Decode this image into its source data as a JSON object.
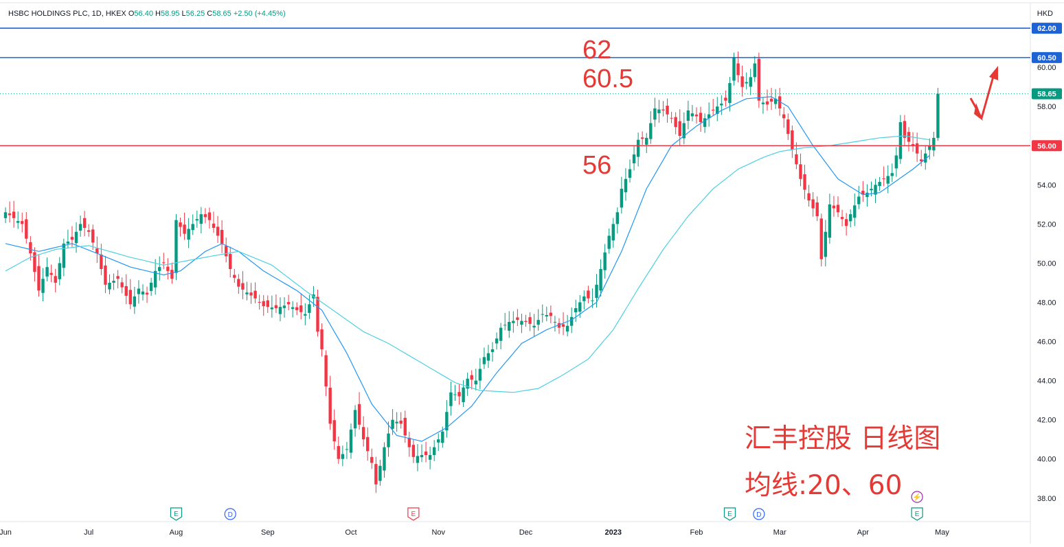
{
  "header": {
    "symbol": "HSBC HOLDINGS PLC, 1D, HKEX",
    "open_label": "O",
    "open": "56.40",
    "high_label": "H",
    "high": "58.95",
    "low_label": "L",
    "low": "56.25",
    "close_label": "C",
    "close": "58.65",
    "change": "+2.50 (+4.45%)",
    "currency": "HKD"
  },
  "annotations": {
    "level_62": "62",
    "level_605": "60.5",
    "level_56": "56",
    "caption_line1": "汇丰控股 日线图",
    "caption_line2": "均线:20、60"
  },
  "colors": {
    "up": "#089981",
    "down": "#f23645",
    "ma20": "#2196f3",
    "ma60": "#4dd0e1",
    "hline_blue": "#1e63d6",
    "hline_red": "#f23645",
    "annotation": "#e53935"
  },
  "chart_data": {
    "type": "candlestick",
    "ylim": [
      36.8,
      63.3
    ],
    "y_ticks": [
      38,
      40,
      42,
      44,
      46,
      48,
      50,
      52,
      54,
      56,
      58,
      60
    ],
    "x_tick_labels": [
      "Jun",
      "Jul",
      "Aug",
      "Sep",
      "Oct",
      "Nov",
      "Dec",
      "2023",
      "Feb",
      "Mar",
      "Apr",
      "May"
    ],
    "x_tick_bars": [
      0,
      20,
      41,
      63,
      83,
      104,
      125,
      146,
      166,
      186,
      206,
      225
    ],
    "horizontal_lines": [
      {
        "price": 62.0,
        "color": "blue",
        "label": "62.00"
      },
      {
        "price": 60.5,
        "color": "blue",
        "label": "60.50"
      },
      {
        "price": 56.0,
        "color": "red",
        "label": "56.00"
      }
    ],
    "last_price": {
      "price": 58.65,
      "label": "58.65"
    },
    "events": [
      {
        "bar": 41,
        "type": "E"
      },
      {
        "bar": 54,
        "type": "D"
      },
      {
        "bar": 98,
        "type": "E"
      },
      {
        "bar": 174,
        "type": "E"
      },
      {
        "bar": 181,
        "type": "D"
      },
      {
        "bar": 219,
        "type": "E"
      },
      {
        "bar": 219,
        "type": "split"
      }
    ],
    "series": [
      {
        "name": "Close",
        "keypoints": [
          [
            0,
            52.6
          ],
          [
            4,
            52.0
          ],
          [
            6,
            50.5
          ],
          [
            8,
            48.6
          ],
          [
            10,
            49.8
          ],
          [
            12,
            49.0
          ],
          [
            14,
            51.0
          ],
          [
            16,
            51.2
          ],
          [
            18,
            52.0
          ],
          [
            20,
            51.6
          ],
          [
            22,
            50.5
          ],
          [
            24,
            48.9
          ],
          [
            27,
            49.2
          ],
          [
            30,
            47.9
          ],
          [
            32,
            48.7
          ],
          [
            34,
            48.4
          ],
          [
            36,
            49.6
          ],
          [
            38,
            50.0
          ],
          [
            40,
            49.2
          ],
          [
            41,
            52.2
          ],
          [
            43,
            51.5
          ],
          [
            45,
            52.0
          ],
          [
            47,
            52.5
          ],
          [
            49,
            52.2
          ],
          [
            52,
            51.0
          ],
          [
            54,
            49.7
          ],
          [
            56,
            48.8
          ],
          [
            58,
            48.5
          ],
          [
            60,
            48.2
          ],
          [
            62,
            47.8
          ],
          [
            65,
            47.7
          ],
          [
            68,
            47.9
          ],
          [
            70,
            47.6
          ],
          [
            72,
            47.4
          ],
          [
            74,
            48.4
          ],
          [
            75,
            46.5
          ],
          [
            76,
            45.6
          ],
          [
            78,
            41.8
          ],
          [
            80,
            40.0
          ],
          [
            82,
            40.5
          ],
          [
            84,
            42.5
          ],
          [
            86,
            41.0
          ],
          [
            88,
            39.8
          ],
          [
            89,
            38.7
          ],
          [
            91,
            40.6
          ],
          [
            93,
            42.0
          ],
          [
            95,
            41.8
          ],
          [
            97,
            40.6
          ],
          [
            98,
            40.1
          ],
          [
            100,
            40.2
          ],
          [
            102,
            40.2
          ],
          [
            103,
            40.6
          ],
          [
            105,
            41.4
          ],
          [
            107,
            43.4
          ],
          [
            109,
            43.2
          ],
          [
            111,
            44.1
          ],
          [
            113,
            44.0
          ],
          [
            115,
            45.2
          ],
          [
            117,
            45.6
          ],
          [
            119,
            46.7
          ],
          [
            121,
            47.0
          ],
          [
            123,
            47.1
          ],
          [
            125,
            47.0
          ],
          [
            127,
            46.8
          ],
          [
            129,
            47.4
          ],
          [
            131,
            47.3
          ],
          [
            133,
            46.7
          ],
          [
            135,
            46.8
          ],
          [
            137,
            47.7
          ],
          [
            139,
            48.3
          ],
          [
            141,
            48.1
          ],
          [
            143,
            49.7
          ],
          [
            145,
            51.4
          ],
          [
            147,
            52.6
          ],
          [
            148,
            53.8
          ],
          [
            150,
            54.8
          ],
          [
            152,
            56.3
          ],
          [
            154,
            56.4
          ],
          [
            156,
            57.9
          ],
          [
            158,
            57.8
          ],
          [
            160,
            57.4
          ],
          [
            162,
            56.5
          ],
          [
            164,
            57.8
          ],
          [
            166,
            57.5
          ],
          [
            167,
            57.2
          ],
          [
            169,
            57.6
          ],
          [
            171,
            58.0
          ],
          [
            173,
            58.3
          ],
          [
            174,
            59.2
          ],
          [
            175,
            60.5
          ],
          [
            176,
            59.6
          ],
          [
            177,
            59.0
          ],
          [
            179,
            59.5
          ],
          [
            180,
            60.2
          ],
          [
            181,
            58.3
          ],
          [
            183,
            58.1
          ],
          [
            185,
            58.4
          ],
          [
            187,
            57.4
          ],
          [
            189,
            55.8
          ],
          [
            191,
            54.3
          ],
          [
            193,
            53.2
          ],
          [
            195,
            52.4
          ],
          [
            196,
            50.2
          ],
          [
            198,
            53.0
          ],
          [
            200,
            52.6
          ],
          [
            202,
            51.9
          ],
          [
            203,
            52.5
          ],
          [
            205,
            53.4
          ],
          [
            207,
            53.6
          ],
          [
            209,
            54.0
          ],
          [
            211,
            54.3
          ],
          [
            213,
            54.6
          ],
          [
            214,
            55.5
          ],
          [
            215,
            57.2
          ],
          [
            216,
            56.4
          ],
          [
            218,
            56.0
          ],
          [
            220,
            55.2
          ],
          [
            222,
            56.0
          ],
          [
            223,
            56.4
          ],
          [
            224,
            58.65
          ]
        ]
      },
      {
        "name": "MA20",
        "keypoints": [
          [
            0,
            51.0
          ],
          [
            8,
            50.6
          ],
          [
            16,
            51.0
          ],
          [
            22,
            50.5
          ],
          [
            30,
            49.8
          ],
          [
            38,
            49.4
          ],
          [
            42,
            49.6
          ],
          [
            48,
            50.6
          ],
          [
            52,
            51.0
          ],
          [
            56,
            50.6
          ],
          [
            62,
            49.6
          ],
          [
            70,
            48.6
          ],
          [
            76,
            47.6
          ],
          [
            82,
            45.4
          ],
          [
            88,
            42.8
          ],
          [
            94,
            41.2
          ],
          [
            100,
            40.9
          ],
          [
            106,
            41.6
          ],
          [
            112,
            42.7
          ],
          [
            118,
            44.4
          ],
          [
            124,
            45.9
          ],
          [
            130,
            46.6
          ],
          [
            136,
            47.1
          ],
          [
            142,
            48.0
          ],
          [
            148,
            50.6
          ],
          [
            154,
            53.8
          ],
          [
            160,
            56.0
          ],
          [
            166,
            57.0
          ],
          [
            172,
            57.8
          ],
          [
            178,
            58.4
          ],
          [
            184,
            58.5
          ],
          [
            188,
            58.0
          ],
          [
            194,
            56.0
          ],
          [
            200,
            54.3
          ],
          [
            206,
            53.5
          ],
          [
            210,
            53.6
          ],
          [
            214,
            54.2
          ],
          [
            218,
            54.8
          ],
          [
            222,
            55.5
          ]
        ]
      },
      {
        "name": "MA60",
        "keypoints": [
          [
            0,
            49.6
          ],
          [
            6,
            50.3
          ],
          [
            12,
            50.7
          ],
          [
            20,
            50.9
          ],
          [
            30,
            50.3
          ],
          [
            38,
            49.9
          ],
          [
            48,
            50.3
          ],
          [
            56,
            50.6
          ],
          [
            64,
            49.9
          ],
          [
            72,
            48.6
          ],
          [
            80,
            47.4
          ],
          [
            86,
            46.5
          ],
          [
            92,
            45.9
          ],
          [
            100,
            44.9
          ],
          [
            108,
            43.9
          ],
          [
            114,
            43.5
          ],
          [
            122,
            43.4
          ],
          [
            128,
            43.6
          ],
          [
            134,
            44.3
          ],
          [
            140,
            45.1
          ],
          [
            146,
            46.6
          ],
          [
            152,
            48.7
          ],
          [
            158,
            50.7
          ],
          [
            164,
            52.4
          ],
          [
            170,
            53.8
          ],
          [
            176,
            54.8
          ],
          [
            182,
            55.4
          ],
          [
            186,
            55.7
          ],
          [
            192,
            55.9
          ],
          [
            198,
            56.0
          ],
          [
            204,
            56.2
          ],
          [
            210,
            56.4
          ],
          [
            216,
            56.5
          ],
          [
            222,
            56.3
          ]
        ]
      }
    ]
  }
}
